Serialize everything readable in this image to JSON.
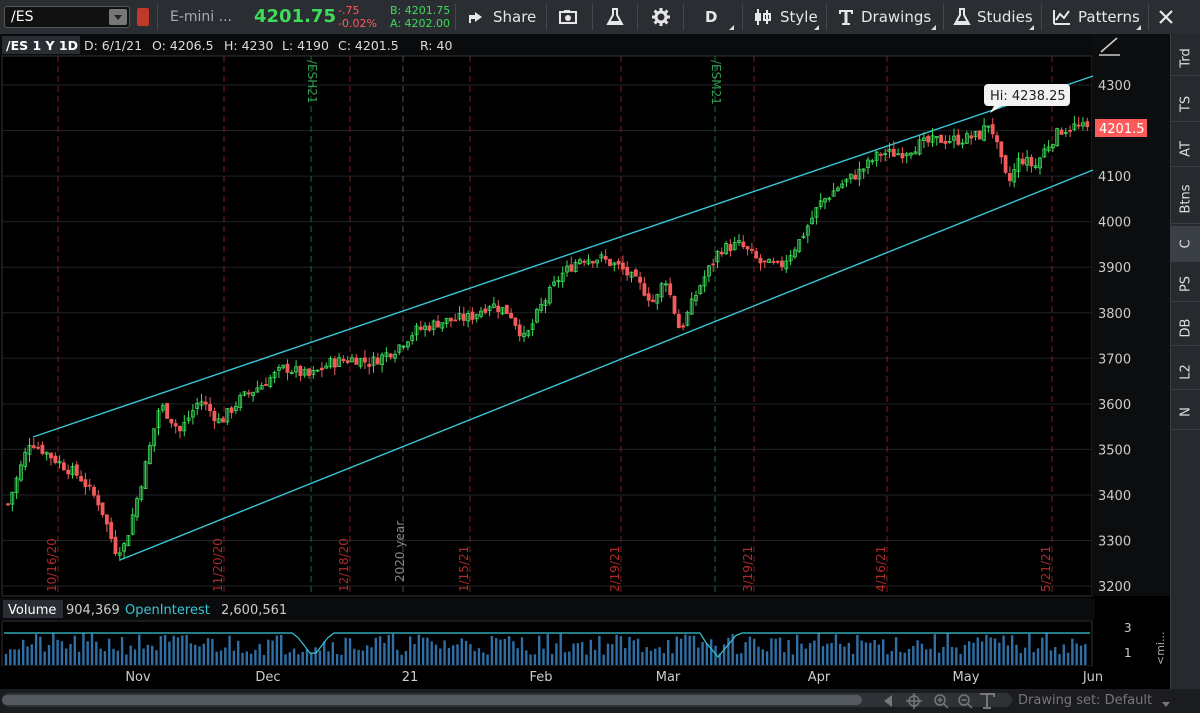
{
  "toolbar": {
    "symbol": "/ES",
    "description": "E-mini ...",
    "last": "4201.75",
    "net_change": "-.75",
    "pct_change": "-0.02%",
    "bid": "B: 4201.75",
    "ask": "A: 4202.00",
    "share_label": "Share",
    "timeframe_label": "D",
    "style_label": "Style",
    "drawings_label": "Drawings",
    "studies_label": "Studies",
    "patterns_label": "Patterns"
  },
  "header": {
    "title": "/ES 1 Y 1D",
    "date": "D: 6/1/21",
    "open": "O: 4206.5",
    "high": "H: 4230",
    "low": "L: 4190",
    "close": "C: 4201.5",
    "range": "R: 40"
  },
  "price_axis": {
    "ticks": [
      "4300",
      "4200",
      "4100",
      "4000",
      "3900",
      "3800",
      "3700",
      "3600",
      "3500",
      "3400",
      "3300",
      "3200"
    ],
    "last_label": "4201.5",
    "hi_bubble": "Hi: 4238.25"
  },
  "x_axis": {
    "labels": [
      "Nov",
      "Dec",
      "21",
      "Feb",
      "Mar",
      "Apr",
      "May",
      "Jun"
    ]
  },
  "markers": {
    "red": [
      "10/16/20",
      "11/20/20",
      "12/18/20",
      "1/15/21",
      "2/19/21",
      "3/19/21",
      "4/16/21",
      "5/21/21"
    ],
    "green": [
      "/ESH21",
      "/ESM21"
    ],
    "gray": [
      "2020 year"
    ]
  },
  "volume": {
    "label": "Volume",
    "value": "904,369",
    "oi_label": "OpenInterest",
    "oi_value": "2,600,561",
    "axis": [
      "3",
      "1"
    ],
    "side_label": "<mi..."
  },
  "right_tabs": [
    "Trd",
    "TS",
    "AT",
    "Btns",
    "C",
    "PS",
    "DB",
    "L2",
    "N"
  ],
  "footer": {
    "drawing_set": "Drawing set: Default"
  },
  "colors": {
    "up": "#3ddc5b",
    "down": "#f25b5b",
    "channel": "#39c6d6",
    "accent_red": "#ff5a5a"
  }
}
